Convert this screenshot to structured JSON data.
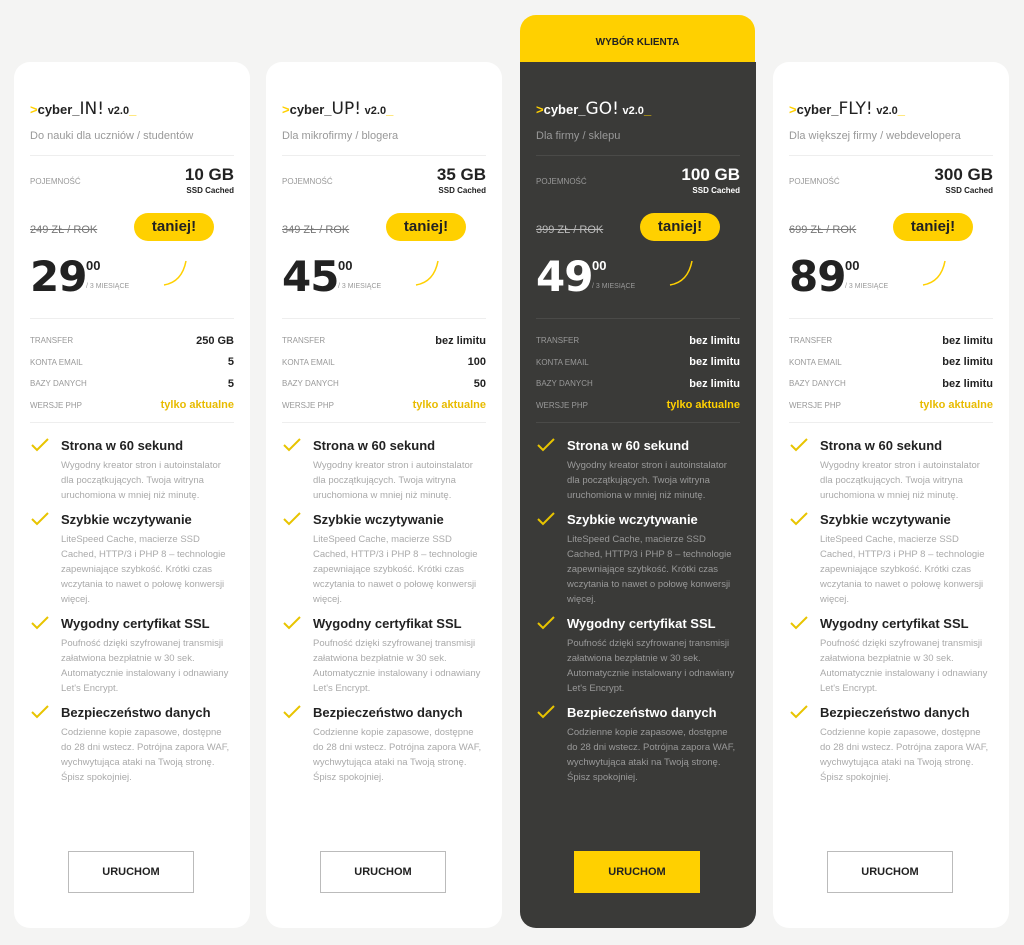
{
  "badge": "WYBÓR KLIENTA",
  "labels": {
    "capacity": "POJEMNOŚĆ",
    "ssd": "SSD Cached",
    "cheaper": "taniej!",
    "period": "/ 3 MIESIĄCE",
    "transfer": "TRANSFER",
    "email": "KONTA EMAIL",
    "db": "BAZY DANYCH",
    "php": "WERSJE PHP",
    "button": "URUCHOM",
    "prefix": ">",
    "cyber": "cyber_",
    "ver": "v2.0",
    "underscore": "_"
  },
  "colors": {
    "accent": "#ffd000",
    "dark": "#3a3a38"
  },
  "features": [
    {
      "title": "Strona w 60 sekund",
      "desc": "Wygodny kreator stron i autoinstalator dla początkujących. Twoja witryna uruchomiona w mniej niż minutę."
    },
    {
      "title": "Szybkie wczytywanie",
      "desc": "LiteSpeed Cache, macierze SSD Cached, HTTP/3 i PHP 8 – technologie zapewniające szybkość. Krótki czas wczytania to nawet o połowę konwersji więcej."
    },
    {
      "title": "Wygodny certyfikat SSL",
      "desc": "Poufność dzięki szyfrowanej transmisji załatwiona bezpłatnie w 30 sek. Automatycznie instalowany i odnawiany Let's Encrypt."
    },
    {
      "title": "Bezpieczeństwo danych",
      "desc": "Codzienne kopie zapasowe, dostępne do 28 dni wstecz. Potrójna zapora WAF, wychwytująca ataki na Twoją stronę. Śpisz spokojniej."
    }
  ],
  "plans": [
    {
      "name": "IN!",
      "subtitle": "Do nauki dla uczniów / studentów",
      "capacity": "10 GB",
      "old_price": "249 ZŁ / ROK",
      "price": "29",
      "cents": "00",
      "transfer": "250 GB",
      "email": "5",
      "db": "5",
      "php": "tylko aktualne"
    },
    {
      "name": "UP!",
      "subtitle": "Dla mikrofirmy / blogera",
      "capacity": "35 GB",
      "old_price": "349 ZŁ / ROK",
      "price": "45",
      "cents": "00",
      "transfer": "bez limitu",
      "email": "100",
      "db": "50",
      "php": "tylko aktualne"
    },
    {
      "name": "GO!",
      "subtitle": "Dla firmy / sklepu",
      "capacity": "100 GB",
      "old_price": "399 ZŁ / ROK",
      "price": "49",
      "cents": "00",
      "transfer": "bez limitu",
      "email": "bez limitu",
      "db": "bez limitu",
      "php": "tylko aktualne",
      "featured": true
    },
    {
      "name": "FLY!",
      "subtitle": "Dla większej firmy / webdevelopera",
      "capacity": "300 GB",
      "old_price": "699 ZŁ / ROK",
      "price": "89",
      "cents": "00",
      "transfer": "bez limitu",
      "email": "bez limitu",
      "db": "bez limitu",
      "php": "tylko aktualne"
    }
  ]
}
